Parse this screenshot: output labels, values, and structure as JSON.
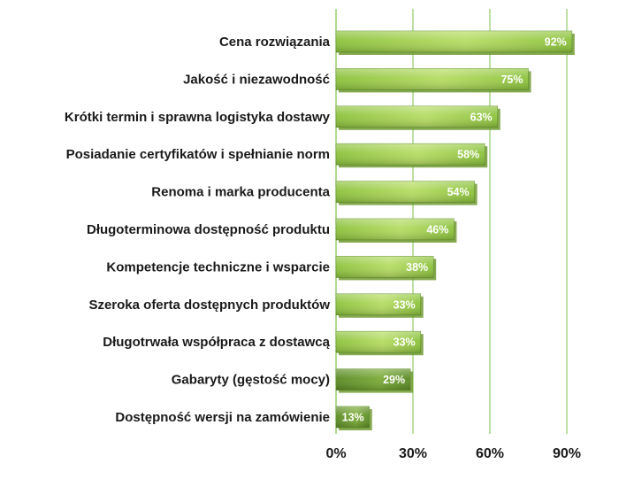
{
  "chart_data": {
    "type": "bar",
    "orientation": "horizontal",
    "title": "",
    "xlabel": "",
    "ylabel": "",
    "categories": [
      "Cena rozwiązania",
      "Jakość i niezawodność",
      "Krótki termin i sprawna logistyka dostawy",
      "Posiadanie certyfikatów i spełnianie norm",
      "Renoma i marka producenta",
      "Długoterminowa dostępność produktu",
      "Kompetencje techniczne i wsparcie",
      "Szeroka oferta dostępnych produktów",
      "Długotrwała współpraca z dostawcą",
      "Gabaryty (gęstość mocy)",
      "Dostępność wersji na zamówienie"
    ],
    "values": [
      92,
      75,
      63,
      58,
      54,
      46,
      38,
      33,
      33,
      29,
      13
    ],
    "value_labels": [
      "92%",
      "75%",
      "63%",
      "58%",
      "54%",
      "46%",
      "38%",
      "33%",
      "33%",
      "29%",
      "13%"
    ],
    "xlim": [
      0,
      100
    ],
    "xticks": [
      0,
      30,
      60,
      90
    ],
    "xtick_labels": [
      "0%",
      "30%",
      "60%",
      "90%"
    ],
    "grid": true,
    "legend": "none",
    "colors": {
      "bar_light": "#b6dc63",
      "bar_mid": "#8cc23c",
      "bar_dark": "#5a8a24",
      "bar_shadow": "#6f9a30",
      "grid": "#7cc04a",
      "text": "#1a1a1a",
      "value_text": "#ffffff"
    }
  }
}
